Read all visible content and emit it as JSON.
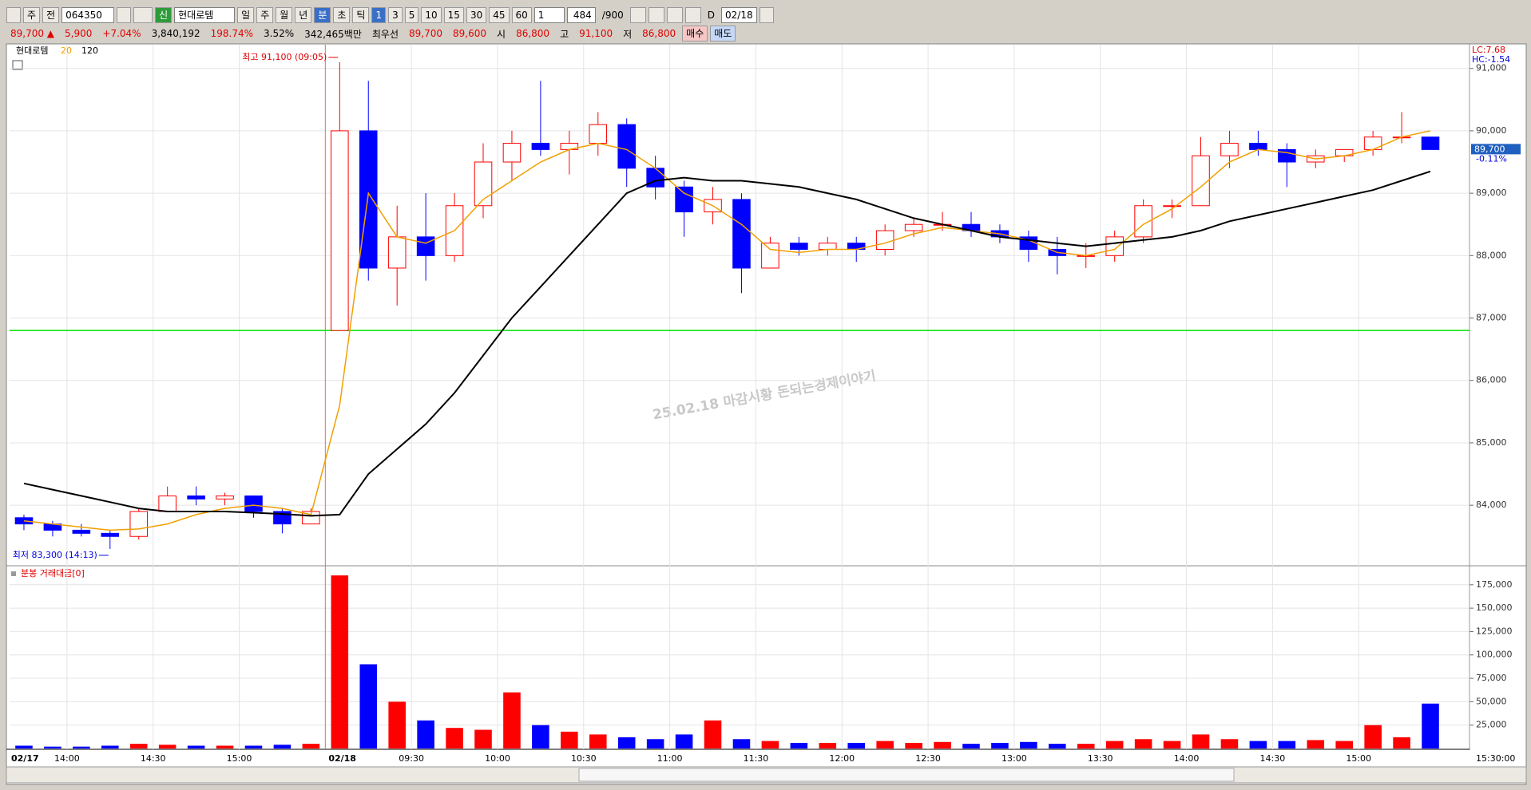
{
  "toolbar": {
    "market": "주",
    "scope": "전",
    "code": "064350",
    "badge": "신",
    "name": "현대로템",
    "periods": [
      "일",
      "주",
      "월",
      "년",
      "분",
      "초",
      "틱"
    ],
    "intervals": [
      "1",
      "3",
      "5",
      "10",
      "15",
      "30",
      "45",
      "60"
    ],
    "count": "1",
    "shown": "484",
    "total": "/900",
    "check": "D",
    "date": "02/18"
  },
  "quote": {
    "items": [
      {
        "text": "89,700 ▲",
        "color": "#e00000"
      },
      {
        "text": "5,900",
        "color": "#e00000"
      },
      {
        "text": "+7.04%",
        "color": "#e00000"
      },
      {
        "text": "3,840,192",
        "color": "#000000"
      },
      {
        "text": "198.74%",
        "color": "#e00000"
      },
      {
        "text": "3.52%",
        "color": "#000000"
      },
      {
        "text": "342,465백만",
        "color": "#000000"
      },
      {
        "text": "최우선",
        "color": "#000000"
      },
      {
        "text": "89,700",
        "color": "#e00000"
      },
      {
        "text": "89,600",
        "color": "#e00000"
      },
      {
        "text": "시",
        "color": "#000000"
      },
      {
        "text": "86,800",
        "color": "#e00000"
      },
      {
        "text": "고",
        "color": "#000000"
      },
      {
        "text": "91,100",
        "color": "#e00000"
      },
      {
        "text": "저",
        "color": "#000000"
      },
      {
        "text": "86,800",
        "color": "#e00000"
      }
    ],
    "buy": "매수",
    "sell": "매도"
  },
  "status": {
    "time": "15:30:00"
  },
  "chart_data": [
    {
      "type": "candlestick",
      "legend_title": "현대로템",
      "lc": "LC:7.68",
      "hc": "HC:-1.54",
      "last_label": "89,700",
      "last_change": "-0.11%",
      "watermark": "25.02.18 마감시황 돈되는경제이야기",
      "high_note": "최고 91,100 (09:05)",
      "low_note": "최저 83,300 (14:13)",
      "up_color": "#ff0000",
      "down_color": "#0000ff",
      "categories": [
        "02/17",
        null,
        "14:00",
        null,
        null,
        "14:30",
        null,
        null,
        "15:00",
        null,
        null,
        "02/18",
        null,
        null,
        "09:30",
        null,
        null,
        "10:00",
        null,
        null,
        "10:30",
        null,
        null,
        "11:00",
        null,
        null,
        "11:30",
        null,
        null,
        "12:00",
        null,
        null,
        "12:30",
        null,
        null,
        "13:00",
        null,
        null,
        "13:30",
        null,
        null,
        "14:00",
        null,
        null,
        "14:30",
        null,
        null,
        "15:00",
        null,
        null
      ],
      "open": [
        83800,
        83700,
        83600,
        83550,
        83500,
        83900,
        84150,
        84100,
        84150,
        83900,
        83700,
        86800,
        90000,
        87800,
        88300,
        88000,
        88800,
        89500,
        89800,
        89700,
        89800,
        90100,
        89400,
        89100,
        88700,
        88900,
        87800,
        88200,
        88100,
        88200,
        88100,
        88400,
        88500,
        88500,
        88400,
        88300,
        88100,
        88000,
        88000,
        88300,
        88800,
        88800,
        89600,
        89800,
        89700,
        89500,
        89600,
        89700,
        89900,
        89900
      ],
      "high": [
        83850,
        83750,
        83700,
        83600,
        83950,
        84300,
        84300,
        84200,
        84150,
        83950,
        83950,
        91100,
        90800,
        88800,
        89000,
        89000,
        89800,
        90000,
        90800,
        90000,
        90300,
        90200,
        89600,
        89200,
        89100,
        89000,
        88300,
        88300,
        88300,
        88300,
        88500,
        88600,
        88700,
        88700,
        88500,
        88400,
        88300,
        88200,
        88400,
        88900,
        88900,
        89900,
        90000,
        90000,
        89800,
        89700,
        89700,
        90000,
        90300,
        89900
      ],
      "low": [
        83600,
        83500,
        83500,
        83300,
        83450,
        83900,
        84000,
        84000,
        83800,
        83550,
        83700,
        86800,
        87600,
        87200,
        87600,
        87900,
        88600,
        89200,
        89600,
        89300,
        89600,
        89100,
        88900,
        88300,
        88500,
        87400,
        87800,
        88000,
        88000,
        87900,
        88000,
        88300,
        88400,
        88300,
        88200,
        87900,
        87700,
        87800,
        87900,
        88200,
        88600,
        88800,
        89400,
        89600,
        89100,
        89400,
        89500,
        89600,
        89800,
        89700
      ],
      "close": [
        83700,
        83600,
        83550,
        83500,
        83900,
        84150,
        84100,
        84150,
        83900,
        83700,
        83900,
        90000,
        87800,
        88300,
        88000,
        88800,
        89500,
        89800,
        89700,
        89800,
        90100,
        89400,
        89100,
        88700,
        88900,
        87800,
        88200,
        88100,
        88200,
        88100,
        88400,
        88500,
        88500,
        88400,
        88300,
        88100,
        88000,
        88000,
        88300,
        88800,
        88800,
        89600,
        89800,
        89700,
        89500,
        89600,
        89700,
        89900,
        89900,
        89700
      ],
      "series": [
        {
          "name": "20",
          "color": "#f0a000",
          "values": [
            83750,
            83700,
            83650,
            83600,
            83620,
            83700,
            83850,
            83950,
            84000,
            83950,
            83850,
            85600,
            89000,
            88300,
            88200,
            88400,
            88900,
            89200,
            89500,
            89700,
            89800,
            89700,
            89400,
            89000,
            88800,
            88500,
            88100,
            88050,
            88100,
            88100,
            88200,
            88350,
            88450,
            88400,
            88350,
            88250,
            88050,
            88000,
            88100,
            88500,
            88750,
            89100,
            89500,
            89700,
            89650,
            89550,
            89600,
            89700,
            89900,
            90000
          ]
        },
        {
          "name": "120",
          "color": "#000000",
          "values": [
            84350,
            84250,
            84150,
            84050,
            83950,
            83900,
            83900,
            83900,
            83880,
            83860,
            83830,
            83850,
            84500,
            84900,
            85300,
            85800,
            86400,
            87000,
            87500,
            88000,
            88500,
            89000,
            89200,
            89250,
            89200,
            89200,
            89150,
            89100,
            89000,
            88900,
            88750,
            88600,
            88500,
            88400,
            88300,
            88250,
            88200,
            88150,
            88200,
            88250,
            88300,
            88400,
            88550,
            88650,
            88750,
            88850,
            88950,
            89050,
            89200,
            89350
          ]
        }
      ],
      "reference_line": {
        "value": 86800,
        "color": "#00e000"
      },
      "ylim": [
        83030,
        91380
      ],
      "yticks": [
        {
          "value": 84000,
          "label": "84,000"
        },
        {
          "value": 85000,
          "label": "85,000"
        },
        {
          "value": 86000,
          "label": "86,000"
        },
        {
          "value": 87000,
          "label": "87,000"
        },
        {
          "value": 88000,
          "label": "88,000"
        },
        {
          "value": 89000,
          "label": "89,000"
        },
        {
          "value": 90000,
          "label": "90,000"
        },
        {
          "value": 91000,
          "label": "91,000"
        }
      ],
      "grid": true
    },
    {
      "type": "bar",
      "title": "분봉 거래대금[0]",
      "values": [
        3000,
        2000,
        2000,
        3000,
        5000,
        4000,
        3000,
        3000,
        3000,
        4000,
        5000,
        185000,
        90000,
        50000,
        30000,
        22000,
        20000,
        60000,
        25000,
        18000,
        15000,
        12000,
        10000,
        15000,
        30000,
        10000,
        8000,
        6000,
        6000,
        6000,
        8000,
        6000,
        7000,
        5000,
        6000,
        7000,
        5000,
        5000,
        8000,
        10000,
        8000,
        15000,
        10000,
        8000,
        8000,
        9000,
        8000,
        25000,
        12000,
        48000
      ],
      "ylim": [
        0,
        193600
      ],
      "yticks": [
        {
          "value": 25000,
          "label": "25,000"
        },
        {
          "value": 50000,
          "label": "50,000"
        },
        {
          "value": 75000,
          "label": "75,000"
        },
        {
          "value": 100000,
          "label": "100,000"
        },
        {
          "value": 125000,
          "label": "125,000"
        },
        {
          "value": 150000,
          "label": "150,000"
        },
        {
          "value": 175000,
          "label": "175,000"
        }
      ],
      "grid": true
    }
  ]
}
